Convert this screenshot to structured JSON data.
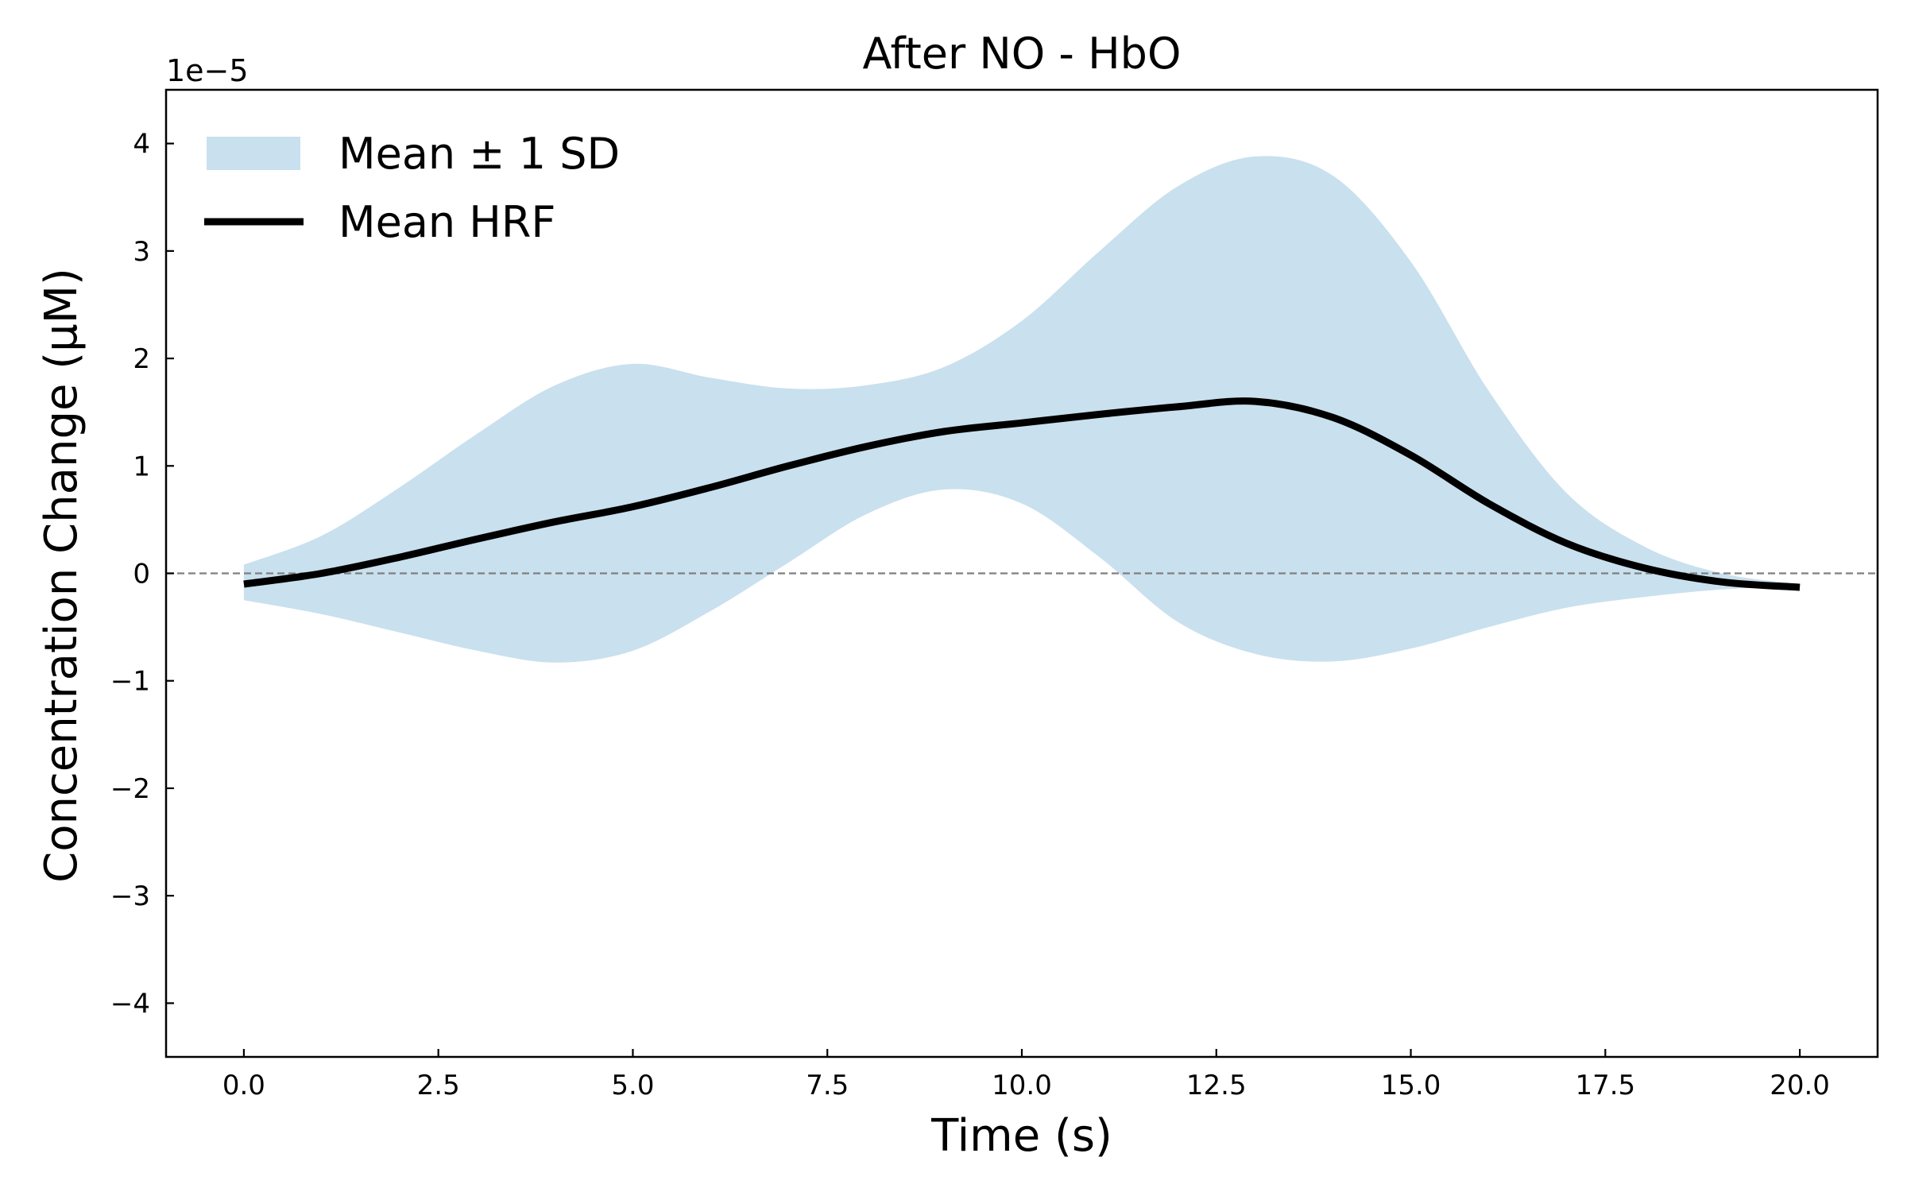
{
  "chart_data": {
    "type": "line",
    "title": "After NO - HbO",
    "xlabel": "Time (s)",
    "ylabel": "Concentration Change (μM)",
    "y_offset_label": "1e−5",
    "xlim": [
      -1.0,
      21.0
    ],
    "ylim": [
      -4.5,
      4.5
    ],
    "x_ticks": [
      0.0,
      2.5,
      5.0,
      7.5,
      10.0,
      12.5,
      15.0,
      17.5,
      20.0
    ],
    "x_tick_labels": [
      "0.0",
      "2.5",
      "5.0",
      "7.5",
      "10.0",
      "12.5",
      "15.0",
      "17.5",
      "20.0"
    ],
    "y_ticks": [
      -4,
      -3,
      -2,
      -1,
      0,
      1,
      2,
      3,
      4
    ],
    "y_tick_labels": [
      "−4",
      "−3",
      "−2",
      "−1",
      "0",
      "1",
      "2",
      "3",
      "4"
    ],
    "reference_line": {
      "y": 0,
      "style": "dashed",
      "color": "#7f7f7f"
    },
    "legend_position": "top-left",
    "colors": {
      "band": "#c9e0ee",
      "mean": "#000000"
    },
    "x": [
      0,
      1,
      2,
      3,
      4,
      5,
      6,
      7,
      8,
      9,
      10,
      11,
      12,
      13,
      14,
      15,
      16,
      17,
      18,
      19,
      20
    ],
    "series": [
      {
        "name": "Mean HRF",
        "kind": "line",
        "values": [
          -0.1,
          0.0,
          0.15,
          0.32,
          0.48,
          0.62,
          0.8,
          1.0,
          1.18,
          1.32,
          1.4,
          1.48,
          1.55,
          1.6,
          1.45,
          1.1,
          0.65,
          0.28,
          0.05,
          -0.08,
          -0.13
        ]
      },
      {
        "name": "Mean ± 1 SD",
        "kind": "band",
        "upper": [
          0.08,
          0.35,
          0.8,
          1.3,
          1.75,
          1.95,
          1.82,
          1.72,
          1.75,
          1.92,
          2.35,
          3.0,
          3.6,
          3.88,
          3.7,
          2.9,
          1.7,
          0.75,
          0.25,
          0.0,
          -0.1
        ],
        "lower": [
          -0.25,
          -0.38,
          -0.55,
          -0.72,
          -0.83,
          -0.72,
          -0.35,
          0.1,
          0.55,
          0.78,
          0.65,
          0.15,
          -0.45,
          -0.75,
          -0.82,
          -0.7,
          -0.5,
          -0.32,
          -0.22,
          -0.15,
          -0.12
        ]
      }
    ]
  }
}
